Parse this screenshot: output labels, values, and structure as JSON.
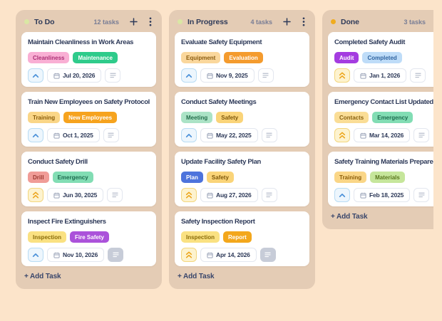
{
  "colors": {
    "page_bg": "#fce4ca",
    "column_bg": "#e4ccb5",
    "card_bg": "#ffffff",
    "text": "#2e3a59",
    "muted_text": "#787d95",
    "priority_medium": "#4a90d9",
    "priority_high": "#eca51c"
  },
  "icons": {
    "column_status": "status-dot-icon",
    "add_card": "plus-icon",
    "column_menu": "kebab-menu-icon",
    "priority_medium": "chevron-up-icon",
    "priority_high": "double-chevron-up-icon",
    "due_date": "calendar-icon",
    "notes": "notes-lines-icon"
  },
  "board": {
    "columns": [
      {
        "title": "To Do",
        "count": "12 tasks",
        "dot_color": "#d9e7a4",
        "add_task": "+ Add Task",
        "cards": [
          {
            "title": "Maintain Cleanliness in Work Areas",
            "tags": [
              {
                "label": "Cleanliness",
                "bg": "#f9afd4",
                "fg": "#ab2f74"
              },
              {
                "label": "Maintenance",
                "bg": "#2ecb8b",
                "fg": "#ffffff"
              }
            ],
            "priority": "medium",
            "due_date": "Jul 20, 2026",
            "notes_filled": false
          },
          {
            "title": "Train New Employees on Safety Protocols",
            "tags": [
              {
                "label": "Training",
                "bg": "#fad687",
                "fg": "#8a5c08"
              },
              {
                "label": "New Employees",
                "bg": "#f6a31e",
                "fg": "#ffffff"
              }
            ],
            "priority": "medium",
            "due_date": "Oct 1, 2025",
            "notes_filled": false
          },
          {
            "title": "Conduct Safety Drill",
            "tags": [
              {
                "label": "Drill",
                "bg": "#f09c97",
                "fg": "#9c3a32"
              },
              {
                "label": "Emergency",
                "bg": "#82ddb4",
                "fg": "#1d6b4e"
              }
            ],
            "priority": "high",
            "due_date": "Jun 30, 2025",
            "notes_filled": false
          },
          {
            "title": "Inspect Fire Extinguishers",
            "tags": [
              {
                "label": "Inspection",
                "bg": "#fae182",
                "fg": "#8a6c0a"
              },
              {
                "label": "Fire Safety",
                "bg": "#ab52da",
                "fg": "#ffffff"
              }
            ],
            "priority": "medium",
            "due_date": "Nov 10, 2026",
            "notes_filled": true
          }
        ]
      },
      {
        "title": "In Progress",
        "count": "4 tasks",
        "dot_color": "#d9e7a4",
        "add_task": "+ Add Task",
        "cards": [
          {
            "title": "Evaluate Safety Equipment",
            "tags": [
              {
                "label": "Equipment",
                "bg": "#fad79c",
                "fg": "#8a5c10"
              },
              {
                "label": "Evaluation",
                "bg": "#f49b2e",
                "fg": "#ffffff"
              }
            ],
            "priority": "medium",
            "due_date": "Nov 9, 2025",
            "notes_filled": false
          },
          {
            "title": "Conduct Safety Meetings",
            "tags": [
              {
                "label": "Meeting",
                "bg": "#abe3c6",
                "fg": "#256e4c"
              },
              {
                "label": "Safety",
                "bg": "#fad479",
                "fg": "#7d570a"
              }
            ],
            "priority": "medium",
            "due_date": "May 22, 2025",
            "notes_filled": false
          },
          {
            "title": "Update Facility Safety Plan",
            "tags": [
              {
                "label": "Plan",
                "bg": "#4d73dc",
                "fg": "#ffffff"
              },
              {
                "label": "Safety",
                "bg": "#fad479",
                "fg": "#7d570a"
              }
            ],
            "priority": "high",
            "due_date": "Aug 27, 2026",
            "notes_filled": false
          },
          {
            "title": "Safety Inspection Report",
            "tags": [
              {
                "label": "Inspection",
                "bg": "#fae182",
                "fg": "#8a6c0a"
              },
              {
                "label": "Report",
                "bg": "#f3a71c",
                "fg": "#ffffff"
              }
            ],
            "priority": "high",
            "due_date": "Apr 14, 2026",
            "notes_filled": true
          }
        ]
      },
      {
        "title": "Done",
        "count": "3 tasks",
        "dot_color": "#f0ac1e",
        "add_task": "+ Add Task",
        "cards": [
          {
            "title": "Completed Safety Audit",
            "tags": [
              {
                "label": "Audit",
                "bg": "#a43ce0",
                "fg": "#ffffff"
              },
              {
                "label": "Completed",
                "bg": "#bedcf8",
                "fg": "#2f639f"
              }
            ],
            "priority": "high",
            "due_date": "Jan 1, 2026",
            "notes_filled": false
          },
          {
            "title": "Emergency Contact List Updated",
            "tags": [
              {
                "label": "Contacts",
                "bg": "#fadd96",
                "fg": "#8a6210"
              },
              {
                "label": "Emergency",
                "bg": "#82ddb4",
                "fg": "#1d6b4e"
              }
            ],
            "priority": "high",
            "due_date": "Mar 14, 2026",
            "notes_filled": false
          },
          {
            "title": "Safety Training Materials Prepared",
            "tags": [
              {
                "label": "Training",
                "bg": "#fad687",
                "fg": "#8a5c08"
              },
              {
                "label": "Materials",
                "bg": "#c6e69b",
                "fg": "#59761d"
              }
            ],
            "priority": "medium",
            "due_date": "Feb 18, 2025",
            "notes_filled": false
          }
        ]
      }
    ]
  }
}
